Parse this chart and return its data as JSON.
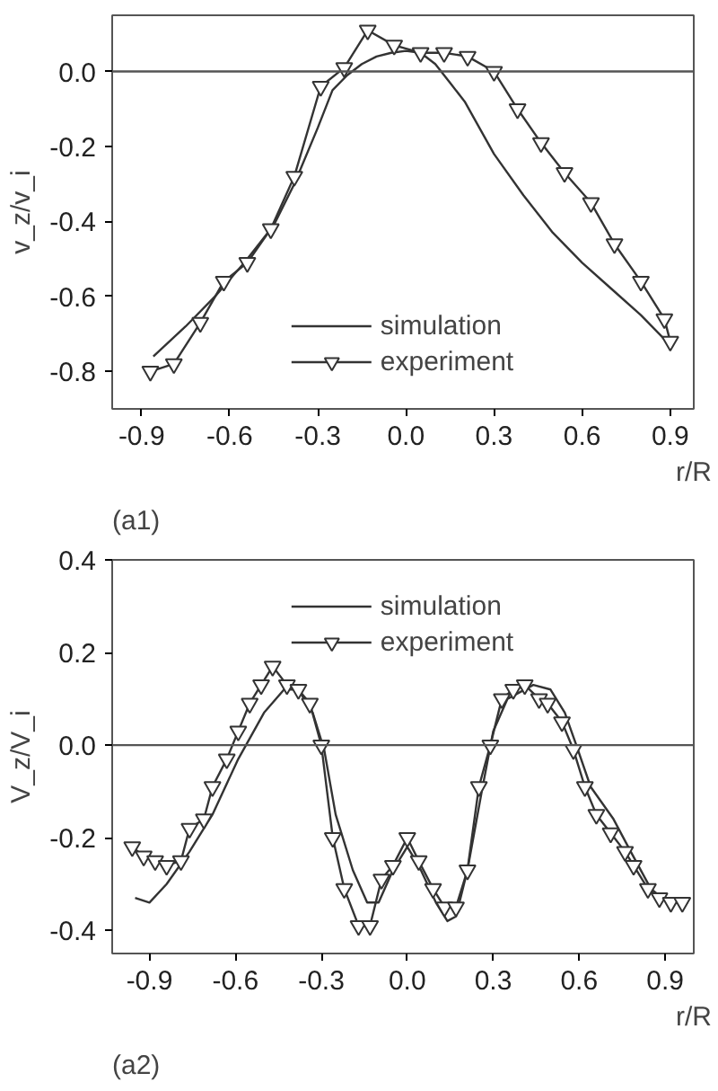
{
  "chart_data": [
    {
      "type": "line",
      "xlabel": "r/R",
      "ylabel": "v_z/v_i",
      "xlim": [
        -1.0,
        0.98
      ],
      "ylim": [
        -0.9,
        0.15
      ],
      "xticks": [
        {
          "value": -0.9,
          "label": "-0.9"
        },
        {
          "value": -0.6,
          "label": "-0.6"
        },
        {
          "value": -0.3,
          "label": "-0.3"
        },
        {
          "value": 0,
          "label": "0.0"
        },
        {
          "value": 0.3,
          "label": "0.3"
        },
        {
          "value": 0.6,
          "label": "0.6"
        },
        {
          "value": 0.9,
          "label": "0.9"
        }
      ],
      "yticks": [
        {
          "value": -0.8,
          "label": "-0.8"
        },
        {
          "value": -0.6,
          "label": "-0.6"
        },
        {
          "value": -0.4,
          "label": "-0.4"
        },
        {
          "value": -0.2,
          "label": "-0.2"
        },
        {
          "value": 0,
          "label": "0.0"
        }
      ],
      "grid": false,
      "legend": "bottom",
      "annotations": [
        "(a1)"
      ],
      "ref_lines": [
        {
          "axis": "y",
          "value": 0,
          "color": "#555555"
        }
      ],
      "series": [
        {
          "name": "simulation",
          "color": "#333333",
          "marker": "none",
          "x": [
            -0.86,
            -0.75,
            -0.65,
            -0.55,
            -0.45,
            -0.38,
            -0.3,
            -0.25,
            -0.2,
            -0.15,
            -0.1,
            -0.05,
            0.0,
            0.05,
            0.1,
            0.15,
            0.2,
            0.3,
            0.4,
            0.5,
            0.6,
            0.7,
            0.8,
            0.9
          ],
          "values": [
            -0.76,
            -0.68,
            -0.6,
            -0.51,
            -0.41,
            -0.3,
            -0.15,
            -0.05,
            -0.01,
            0.02,
            0.04,
            0.05,
            0.055,
            0.05,
            0.02,
            -0.03,
            -0.08,
            -0.22,
            -0.33,
            -0.43,
            -0.51,
            -0.58,
            -0.65,
            -0.73
          ]
        },
        {
          "name": "experiment",
          "color": "#333333",
          "marker": "triangle",
          "x": [
            -0.87,
            -0.79,
            -0.7,
            -0.62,
            -0.54,
            -0.46,
            -0.38,
            -0.29,
            -0.21,
            -0.13,
            -0.04,
            0.05,
            0.13,
            0.21,
            0.3,
            0.38,
            0.46,
            0.54,
            0.63,
            0.71,
            0.8,
            0.88,
            0.9
          ],
          "values": [
            -0.8,
            -0.78,
            -0.67,
            -0.56,
            -0.51,
            -0.42,
            -0.28,
            -0.04,
            0.01,
            0.11,
            0.07,
            0.05,
            0.05,
            0.04,
            0.0,
            -0.1,
            -0.19,
            -0.27,
            -0.35,
            -0.46,
            -0.56,
            -0.66,
            -0.72
          ]
        }
      ]
    },
    {
      "type": "line",
      "xlabel": "r/R",
      "ylabel": "V_z/V_i",
      "xlim": [
        -1.03,
        1.0
      ],
      "ylim": [
        -0.45,
        0.4
      ],
      "xticks": [
        {
          "value": -0.9,
          "label": "-0.9"
        },
        {
          "value": -0.6,
          "label": "-0.6"
        },
        {
          "value": -0.3,
          "label": "-0.3"
        },
        {
          "value": 0,
          "label": "0.0"
        },
        {
          "value": 0.3,
          "label": "0.3"
        },
        {
          "value": 0.6,
          "label": "0.6"
        },
        {
          "value": 0.9,
          "label": "0.9"
        }
      ],
      "yticks": [
        {
          "value": -0.4,
          "label": "-0.4"
        },
        {
          "value": -0.2,
          "label": "-0.2"
        },
        {
          "value": 0,
          "label": "0.0"
        },
        {
          "value": 0.2,
          "label": "0.2"
        },
        {
          "value": 0.4,
          "label": "0.4"
        }
      ],
      "grid": false,
      "legend": "top",
      "annotations": [
        "(a2)"
      ],
      "ref_lines": [
        {
          "axis": "y",
          "value": 0,
          "color": "#555555"
        }
      ],
      "series": [
        {
          "name": "simulation",
          "color": "#333333",
          "marker": "none",
          "x": [
            -0.95,
            -0.9,
            -0.84,
            -0.76,
            -0.68,
            -0.59,
            -0.5,
            -0.43,
            -0.38,
            -0.33,
            -0.29,
            -0.25,
            -0.19,
            -0.14,
            -0.1,
            -0.05,
            0.0,
            0.04,
            0.1,
            0.14,
            0.17,
            0.21,
            0.26,
            0.3,
            0.35,
            0.44,
            0.5,
            0.55,
            0.59,
            0.64,
            0.72,
            0.78,
            0.85,
            0.91,
            0.98
          ],
          "values": [
            -0.33,
            -0.34,
            -0.3,
            -0.23,
            -0.15,
            -0.03,
            0.07,
            0.12,
            0.12,
            0.07,
            -0.01,
            -0.15,
            -0.27,
            -0.34,
            -0.34,
            -0.27,
            -0.22,
            -0.26,
            -0.34,
            -0.38,
            -0.37,
            -0.27,
            -0.1,
            0.03,
            0.1,
            0.13,
            0.12,
            0.07,
            0.0,
            -0.09,
            -0.16,
            -0.23,
            -0.31,
            -0.34,
            -0.34
          ]
        },
        {
          "name": "experiment",
          "color": "#333333",
          "marker": "triangle",
          "x": [
            -0.96,
            -0.92,
            -0.88,
            -0.84,
            -0.79,
            -0.76,
            -0.71,
            -0.68,
            -0.63,
            -0.59,
            -0.55,
            -0.51,
            -0.47,
            -0.42,
            -0.38,
            -0.34,
            -0.3,
            -0.26,
            -0.22,
            -0.17,
            -0.13,
            -0.09,
            -0.05,
            0.0,
            0.04,
            0.09,
            0.13,
            0.17,
            0.21,
            0.25,
            0.29,
            0.33,
            0.37,
            0.41,
            0.46,
            0.49,
            0.54,
            0.58,
            0.62,
            0.66,
            0.71,
            0.76,
            0.79,
            0.84,
            0.88,
            0.92,
            0.96
          ],
          "values": [
            -0.22,
            -0.24,
            -0.25,
            -0.26,
            -0.25,
            -0.18,
            -0.16,
            -0.09,
            -0.03,
            0.03,
            0.09,
            0.13,
            0.17,
            0.13,
            0.12,
            0.09,
            0.0,
            -0.2,
            -0.31,
            -0.39,
            -0.39,
            -0.29,
            -0.26,
            -0.2,
            -0.25,
            -0.31,
            -0.35,
            -0.35,
            -0.27,
            -0.09,
            0.0,
            0.1,
            0.12,
            0.13,
            0.1,
            0.09,
            0.05,
            -0.01,
            -0.09,
            -0.15,
            -0.19,
            -0.23,
            -0.26,
            -0.31,
            -0.33,
            -0.34,
            -0.34
          ]
        }
      ]
    }
  ]
}
